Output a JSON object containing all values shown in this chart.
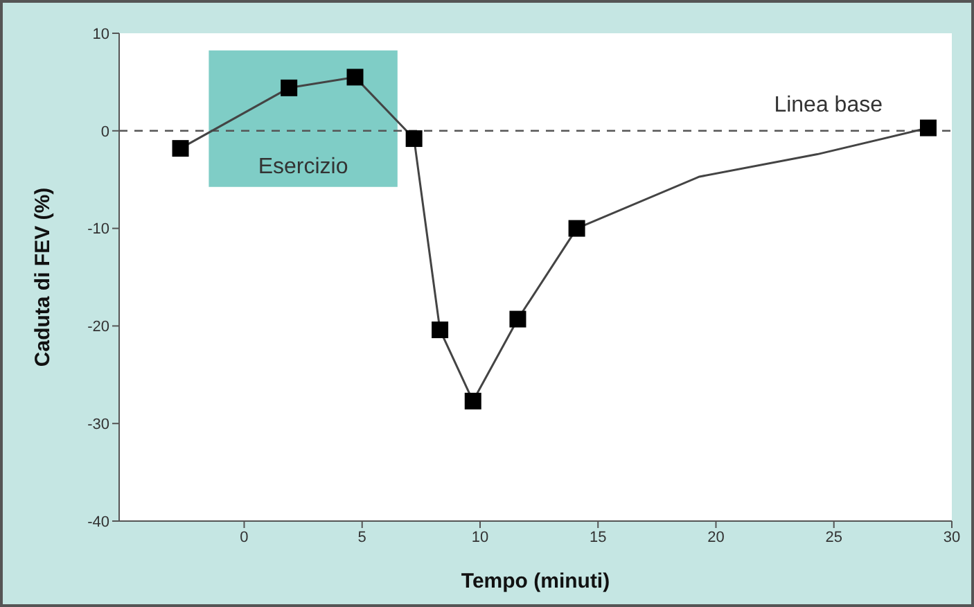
{
  "chart_data": {
    "type": "line",
    "xlabel": "Tempo (minuti)",
    "ylabel": "Caduta di FEV (%)",
    "xlim": [
      -5.3,
      30
    ],
    "xticks": [
      0,
      5,
      10,
      15,
      20,
      25,
      30
    ],
    "ylim": [
      -40,
      10
    ],
    "yticks": [
      -40,
      -30,
      -20,
      -10,
      0,
      10
    ],
    "series": [
      {
        "color": "#444444",
        "marker": "none",
        "x": [
          -2.7,
          1.9,
          4.7,
          7.2,
          8.3,
          9.7,
          11.6,
          14.1,
          19.3,
          24.3,
          29.0
        ],
        "values": [
          -1.8,
          4.4,
          5.5,
          -0.8,
          -20.4,
          -27.7,
          -19.3,
          -10.0,
          -4.7,
          -2.4,
          0.3
        ]
      },
      {
        "type": "scatter",
        "color": "#000000",
        "marker": "square",
        "x": [
          -2.7,
          1.9,
          4.7,
          7.2,
          8.3,
          9.7,
          11.6,
          14.1,
          29.0
        ],
        "values": [
          -1.8,
          4.4,
          5.5,
          -0.8,
          -20.4,
          -27.7,
          -19.3,
          -10.0,
          0.3
        ]
      }
    ],
    "ref_lines": [
      {
        "axis": "y",
        "value": 0,
        "label": "Linea base",
        "color": "#555555",
        "line_style": "dashed"
      }
    ],
    "bands": [
      {
        "axis": "x",
        "from": -1.5,
        "to": 6.5,
        "label": "Esercizio",
        "color": "#7fcdc6"
      }
    ],
    "grid": false
  }
}
